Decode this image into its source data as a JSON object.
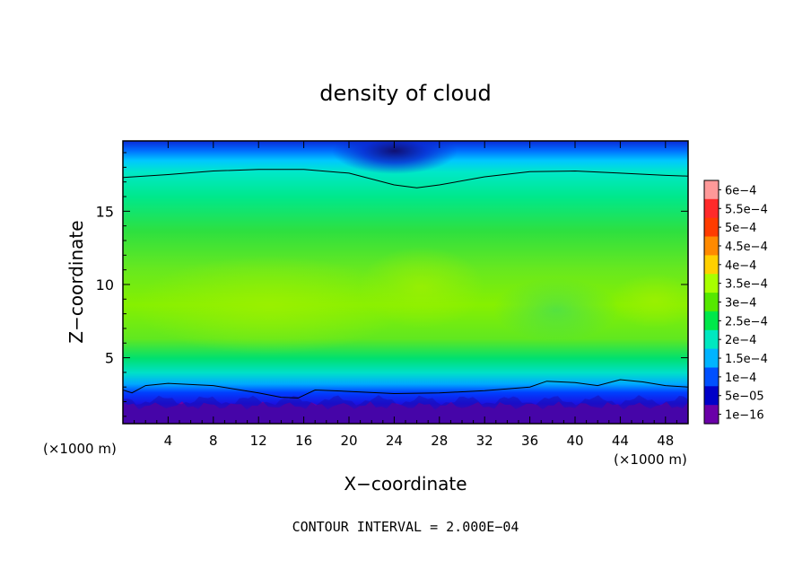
{
  "chart_data": {
    "type": "heatmap",
    "title": "density of cloud",
    "xlabel": "X−coordinate",
    "ylabel": "Z−coordinate",
    "x_unit_left": "(×1000 m)",
    "x_unit_right": "(×1000 m)",
    "xlim": [
      0,
      50
    ],
    "ylim": [
      0.5,
      19.8
    ],
    "x_ticks": [
      4,
      8,
      12,
      16,
      20,
      24,
      28,
      32,
      36,
      40,
      44,
      48
    ],
    "y_ticks": [
      5,
      10,
      15
    ],
    "footnote": "CONTOUR INTERVAL = 2.000E−04",
    "colorbar": {
      "labels": [
        "6e−4",
        "5.5e−4",
        "5e−4",
        "4.5e−4",
        "4e−4",
        "3.5e−4",
        "3e−4",
        "2.5e−4",
        "2e−4",
        "1.5e−4",
        "1e−4",
        "5e−05",
        "1e−16"
      ],
      "values": [
        0.0006,
        0.00055,
        0.0005,
        0.00045,
        0.0004,
        0.00035,
        0.0003,
        0.00025,
        0.0002,
        0.00015,
        0.0001,
        5e-05,
        1e-16
      ],
      "colors": [
        "#ff9999",
        "#ff2a2a",
        "#ff3c00",
        "#ff8a00",
        "#ffd000",
        "#a8ff00",
        "#55e800",
        "#00e84a",
        "#00e8c0",
        "#00b4ff",
        "#0050ff",
        "#0000c8",
        "#6a00a8"
      ]
    },
    "contour_lines": [
      {
        "level": 0.0002,
        "points": [
          [
            0,
            17.3
          ],
          [
            4,
            17.5
          ],
          [
            8,
            17.75
          ],
          [
            12,
            17.85
          ],
          [
            16,
            17.85
          ],
          [
            20,
            17.6
          ],
          [
            24,
            16.8
          ],
          [
            26,
            16.6
          ],
          [
            28,
            16.8
          ],
          [
            32,
            17.35
          ],
          [
            36,
            17.7
          ],
          [
            40,
            17.75
          ],
          [
            44,
            17.6
          ],
          [
            48,
            17.45
          ],
          [
            50,
            17.4
          ]
        ]
      },
      {
        "level": 0.0002,
        "points": [
          [
            0,
            2.8
          ],
          [
            0.8,
            2.6
          ],
          [
            2,
            3.1
          ],
          [
            4,
            3.25
          ],
          [
            8,
            3.1
          ],
          [
            12,
            2.6
          ],
          [
            14,
            2.3
          ],
          [
            15.5,
            2.25
          ],
          [
            17,
            2.8
          ],
          [
            20,
            2.7
          ],
          [
            24,
            2.55
          ],
          [
            28,
            2.6
          ],
          [
            32,
            2.75
          ],
          [
            36,
            3.0
          ],
          [
            37.5,
            3.4
          ],
          [
            40,
            3.3
          ],
          [
            42,
            3.1
          ],
          [
            44,
            3.5
          ],
          [
            46,
            3.35
          ],
          [
            48,
            3.1
          ],
          [
            50,
            3.0
          ]
        ]
      }
    ],
    "grid": false,
    "legend": "right"
  }
}
